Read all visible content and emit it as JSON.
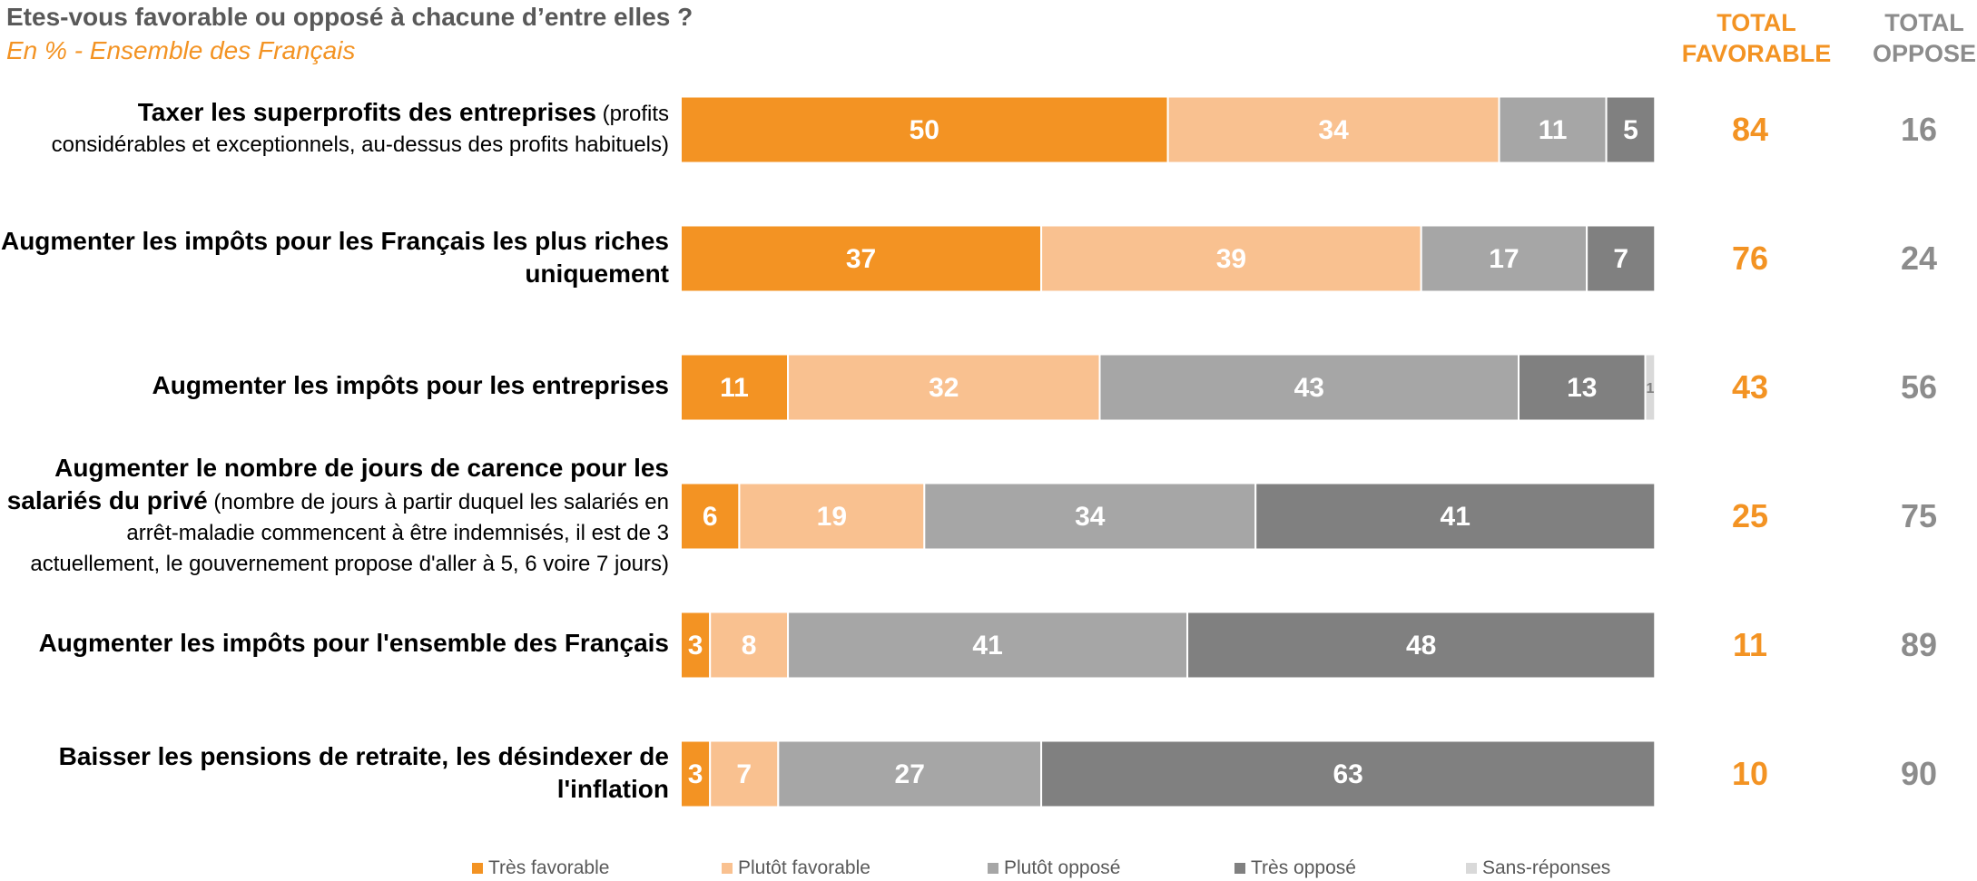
{
  "header": {
    "question": "Etes-vous favorable ou opposé à chacune d’entre elles ?",
    "subtitle": "En % - Ensemble des Français",
    "total_favorable_label": "TOTAL\nFAVORABLE",
    "total_oppose_label": "TOTAL\nOPPOSE"
  },
  "colors": {
    "tres_favorable": "#F39323",
    "plutot_favorable": "#F9C190",
    "plutot_oppose": "#A6A6A6",
    "tres_oppose": "#808080",
    "sans_reponses": "#D9D9D9",
    "total_favorable_text": "#F39323",
    "total_oppose_text": "#8C8C8C"
  },
  "rows": [
    {
      "label_bold": "Taxer les superprofits des entreprises",
      "label_rest": " (profits considérables et exceptionnels, au-dessus des profits habituels)"
    },
    {
      "label_bold": "Augmenter les impôts pour les Français les plus riches uniquement",
      "label_rest": ""
    },
    {
      "label_bold": "Augmenter les impôts pour les entreprises",
      "label_rest": ""
    },
    {
      "label_bold": "Augmenter le nombre de jours de carence pour les salariés du privé",
      "label_rest": " (nombre de jours à partir duquel les salariés en arrêt-maladie commencent à être indemnisés, il est de 3 actuellement, le gouvernement propose d'aller à 5, 6 voire 7 jours)"
    },
    {
      "label_bold": "Augmenter les impôts pour l'ensemble des Français",
      "label_rest": ""
    },
    {
      "label_bold": "Baisser les pensions de retraite, les désindexer de l'inflation",
      "label_rest": ""
    }
  ],
  "chart_data": {
    "type": "bar",
    "orientation": "horizontal",
    "stacked": true,
    "title": "Etes-vous favorable ou opposé à chacune d’entre elles ?",
    "subtitle": "En % - Ensemble des Français",
    "categories": [
      "Taxer les superprofits des entreprises (profits considérables et exceptionnels, au-dessus des profits habituels)",
      "Augmenter les impôts pour les Français les plus riches uniquement",
      "Augmenter les impôts pour les entreprises",
      "Augmenter le nombre de jours de carence pour les salariés du privé (nombre de jours à partir duquel les salariés en arrêt-maladie commencent à être indemnisés, il est de 3 actuellement, le gouvernement propose d'aller à 5, 6 voire 7 jours)",
      "Augmenter les impôts pour l'ensemble des Français",
      "Baisser les pensions de retraite, les désindexer de l'inflation"
    ],
    "series": [
      {
        "name": "Très favorable",
        "color": "#F39323",
        "label_color": "#FFFFFF",
        "values": [
          50,
          37,
          11,
          6,
          3,
          3
        ]
      },
      {
        "name": "Plutôt favorable",
        "color": "#F9C190",
        "label_color": "#FFFFFF",
        "values": [
          34,
          39,
          32,
          19,
          8,
          7
        ]
      },
      {
        "name": "Plutôt opposé",
        "color": "#A6A6A6",
        "label_color": "#FFFFFF",
        "values": [
          11,
          17,
          43,
          34,
          41,
          27
        ]
      },
      {
        "name": "Très opposé",
        "color": "#808080",
        "label_color": "#FFFFFF",
        "values": [
          5,
          7,
          13,
          41,
          48,
          63
        ]
      },
      {
        "name": "Sans-réponses",
        "color": "#D9D9D9",
        "label_color": "#808080",
        "values": [
          0,
          0,
          1,
          0,
          0,
          0
        ]
      }
    ],
    "totals": {
      "favorable": [
        84,
        76,
        43,
        25,
        11,
        10
      ],
      "oppose": [
        16,
        24,
        56,
        75,
        89,
        90
      ]
    },
    "xlim": [
      0,
      101
    ],
    "legend_position": "bottom",
    "grid": false
  }
}
